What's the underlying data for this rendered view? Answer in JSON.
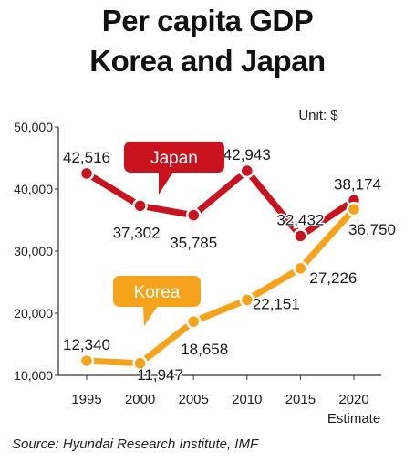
{
  "title_line1": "Per capita GDP",
  "title_line2": "Korea and Japan",
  "unit_label": "Unit: $",
  "source": "Source: Hyundai Research Institute, IMF",
  "chart_data": {
    "type": "line",
    "title": "Per capita GDP Korea and Japan",
    "x": [
      "1995",
      "2000",
      "2005",
      "2010",
      "2015",
      "2020"
    ],
    "x_sublabels": [
      "",
      "",
      "",
      "",
      "",
      "Estimate"
    ],
    "ylim": [
      10000,
      50000
    ],
    "y_ticks": [
      10000,
      20000,
      30000,
      40000,
      50000
    ],
    "y_tick_labels": [
      "10,000",
      "20,000",
      "30,000",
      "40,000",
      "50,000"
    ],
    "grid": false,
    "series": [
      {
        "name": "Japan",
        "color": "#c8121e",
        "values": [
          42516,
          37302,
          35785,
          42943,
          32432,
          38174
        ],
        "labels": [
          "42,516",
          "37,302",
          "35,785",
          "42,943",
          "32,432",
          "38,174"
        ]
      },
      {
        "name": "Korea",
        "color": "#f5a31a",
        "values": [
          12340,
          11947,
          18658,
          22151,
          27226,
          36750
        ],
        "labels": [
          "12,340",
          "11,947",
          "18,658",
          "22,151",
          "27,226",
          "36,750"
        ]
      }
    ]
  }
}
